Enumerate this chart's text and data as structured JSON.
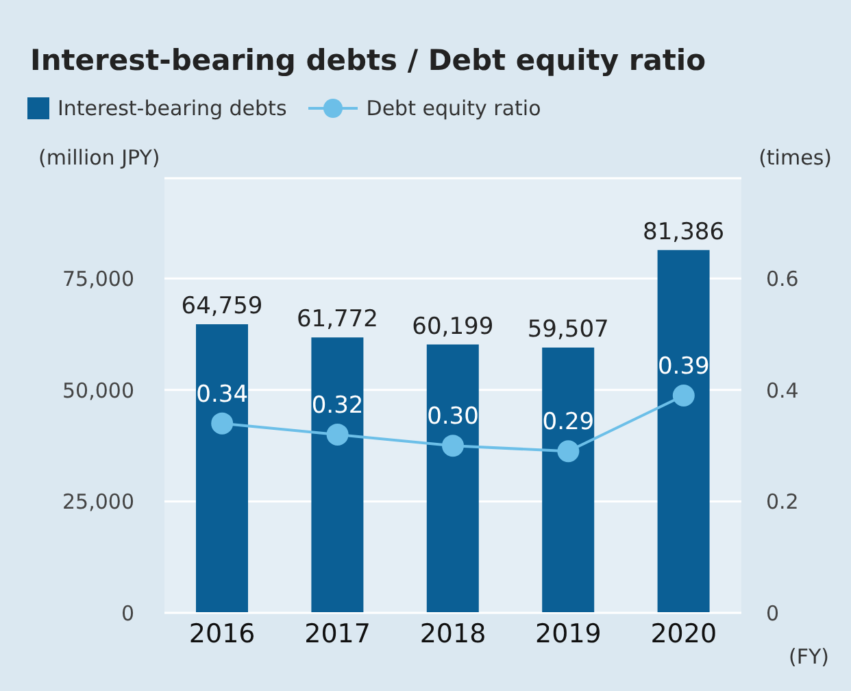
{
  "chart_data": {
    "type": "bar",
    "title": "Interest-bearing debts / Debt equity ratio",
    "ylabel": "(million JPY)",
    "y2label": "(times)",
    "xlabel": "(FY)",
    "categories": [
      "2016",
      "2017",
      "2018",
      "2019",
      "2020"
    ],
    "series": [
      {
        "name": "Interest-bearing debts",
        "color": "#0b5f95",
        "values": [
          64759,
          61772,
          60199,
          59507,
          81386
        ],
        "value_labels": [
          "64,759",
          "61,772",
          "60,199",
          "59,507",
          "81,386"
        ]
      },
      {
        "name": "Debt equity ratio",
        "type": "line",
        "axis": "y2",
        "color": "#6cbfe8",
        "marker": "circle",
        "values": [
          0.34,
          0.32,
          0.3,
          0.29,
          0.39
        ],
        "value_labels": [
          "0.34",
          "0.32",
          "0.30",
          "0.29",
          "0.39"
        ]
      }
    ],
    "ylim": [
      0,
      97500
    ],
    "yticks": [
      0,
      {
        "value": 25000,
        "label": "25,000"
      },
      {
        "value": 50000,
        "label": "50,000"
      },
      {
        "value": 75000,
        "label": "75,000"
      }
    ],
    "y2lim": [
      0,
      0.78
    ],
    "y2ticks": [
      0,
      0.2,
      0.4,
      0.6
    ],
    "grid": "y",
    "legend": "top left"
  }
}
